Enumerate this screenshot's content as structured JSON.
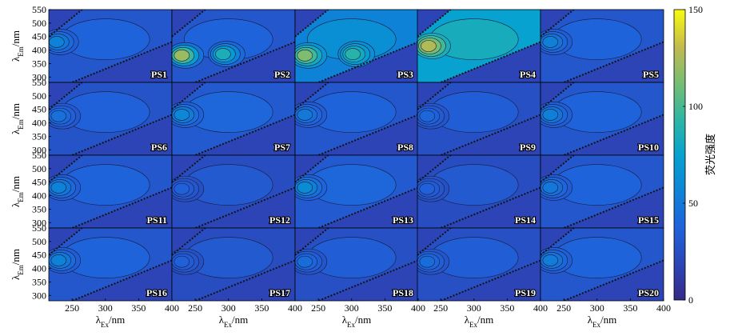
{
  "chart_data": {
    "type": "heatmap",
    "description_kind": "grid of excitation-emission matrix contour plots",
    "x_axis": {
      "label_main": "λ",
      "label_sub": "Ex",
      "label_unit": "/nm",
      "range": [
        215,
        400
      ],
      "ticks": [
        250,
        300,
        350,
        400
      ]
    },
    "y_axis": {
      "label_main": "λ",
      "label_sub": "Em",
      "label_unit": "/nm",
      "range": [
        280,
        550
      ],
      "ticks": [
        300,
        350,
        400,
        450,
        500,
        550
      ]
    },
    "colorbar": {
      "label": "荧光强度",
      "range": [
        0,
        150
      ],
      "ticks": [
        0,
        50,
        100,
        150
      ]
    },
    "layout": {
      "rows": 4,
      "cols": 5
    },
    "panels": [
      {
        "name": "PS1",
        "bg": 30,
        "peaks": [
          {
            "ex": 225,
            "em": 430,
            "i": 62
          }
        ]
      },
      {
        "name": "PS2",
        "bg": 30,
        "peaks": [
          {
            "ex": 228,
            "em": 380,
            "i": 145
          },
          {
            "ex": 290,
            "em": 385,
            "i": 100
          }
        ]
      },
      {
        "name": "PS3",
        "bg": 55,
        "peaks": [
          {
            "ex": 228,
            "em": 380,
            "i": 130
          },
          {
            "ex": 300,
            "em": 385,
            "i": 100
          }
        ]
      },
      {
        "name": "PS4",
        "bg": 75,
        "peaks": [
          {
            "ex": 230,
            "em": 415,
            "i": 140
          }
        ]
      },
      {
        "name": "PS5",
        "bg": 30,
        "peaks": [
          {
            "ex": 228,
            "em": 430,
            "i": 60
          }
        ]
      },
      {
        "name": "PS6",
        "bg": 28,
        "peaks": [
          {
            "ex": 228,
            "em": 425,
            "i": 50
          }
        ]
      },
      {
        "name": "PS7",
        "bg": 32,
        "peaks": [
          {
            "ex": 228,
            "em": 430,
            "i": 65
          }
        ]
      },
      {
        "name": "PS8",
        "bg": 30,
        "peaks": [
          {
            "ex": 228,
            "em": 430,
            "i": 55
          }
        ]
      },
      {
        "name": "PS9",
        "bg": 26,
        "peaks": [
          {
            "ex": 228,
            "em": 425,
            "i": 45
          }
        ]
      },
      {
        "name": "PS10",
        "bg": 30,
        "peaks": [
          {
            "ex": 228,
            "em": 430,
            "i": 60
          }
        ]
      },
      {
        "name": "PS11",
        "bg": 30,
        "peaks": [
          {
            "ex": 228,
            "em": 430,
            "i": 62
          }
        ]
      },
      {
        "name": "PS12",
        "bg": 24,
        "peaks": [
          {
            "ex": 228,
            "em": 425,
            "i": 40
          }
        ]
      },
      {
        "name": "PS13",
        "bg": 32,
        "peaks": [
          {
            "ex": 228,
            "em": 430,
            "i": 68
          }
        ]
      },
      {
        "name": "PS14",
        "bg": 24,
        "peaks": [
          {
            "ex": 228,
            "em": 425,
            "i": 40
          }
        ]
      },
      {
        "name": "PS15",
        "bg": 30,
        "peaks": [
          {
            "ex": 228,
            "em": 430,
            "i": 55
          }
        ]
      },
      {
        "name": "PS16",
        "bg": 30,
        "peaks": [
          {
            "ex": 228,
            "em": 430,
            "i": 62
          }
        ]
      },
      {
        "name": "PS17",
        "bg": 24,
        "peaks": [
          {
            "ex": 228,
            "em": 425,
            "i": 40
          }
        ]
      },
      {
        "name": "PS18",
        "bg": 26,
        "peaks": [
          {
            "ex": 228,
            "em": 425,
            "i": 48
          }
        ]
      },
      {
        "name": "PS19",
        "bg": 26,
        "peaks": [
          {
            "ex": 228,
            "em": 425,
            "i": 48
          }
        ]
      },
      {
        "name": "PS20",
        "bg": 30,
        "peaks": [
          {
            "ex": 228,
            "em": 430,
            "i": 58
          }
        ]
      }
    ]
  }
}
